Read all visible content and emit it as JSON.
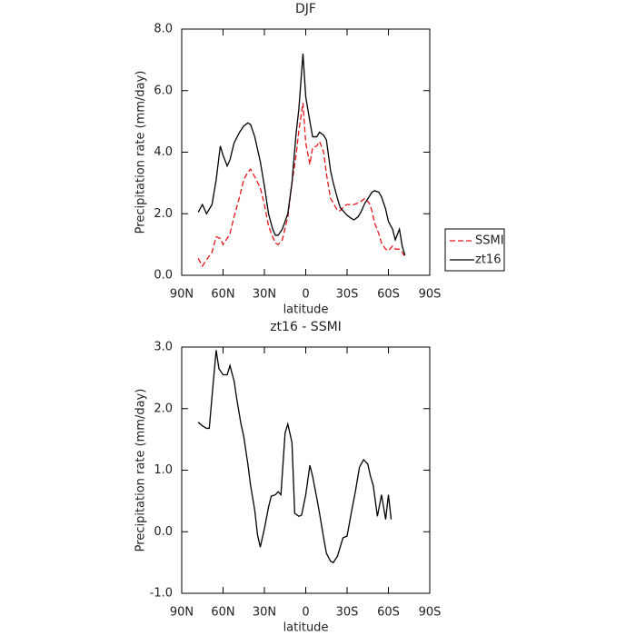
{
  "chart_data": [
    {
      "type": "line",
      "title": "DJF",
      "xlabel": "latitude",
      "ylabel": "Precipitation rate (mm/day)",
      "xlim": [
        90,
        -90
      ],
      "xticks": [
        {
          "value": 90,
          "label": "90N"
        },
        {
          "value": 60,
          "label": "60N"
        },
        {
          "value": 30,
          "label": "30N"
        },
        0,
        {
          "value": -30,
          "label": "30S"
        },
        {
          "value": -60,
          "label": "60S"
        },
        {
          "value": -90,
          "label": "90S"
        }
      ],
      "ylim": [
        0,
        8
      ],
      "yticks": [
        {
          "value": 0,
          "label": "0.0"
        },
        {
          "value": 2,
          "label": "2.0"
        },
        {
          "value": 4,
          "label": "4.0"
        },
        {
          "value": 6,
          "label": "6.0"
        },
        {
          "value": 8,
          "label": "8.0"
        }
      ],
      "legend": "right",
      "x": [
        78,
        75,
        72,
        68,
        65,
        62,
        60,
        57,
        55,
        52,
        48,
        45,
        42,
        40,
        37,
        33,
        30,
        27,
        24,
        22,
        20,
        17,
        13,
        10,
        7,
        5,
        2,
        0,
        -3,
        -5,
        -8,
        -10,
        -13,
        -15,
        -18,
        -20,
        -23,
        -25,
        -28,
        -30,
        -33,
        -35,
        -38,
        -40,
        -43,
        -46,
        -48,
        -50,
        -53,
        -55,
        -58,
        -60,
        -63,
        -65,
        -68,
        -70,
        -72
      ],
      "series": [
        {
          "name": "SSMI",
          "color": "#e8141b",
          "linestyle": "dashed",
          "values": [
            0.55,
            0.3,
            0.5,
            0.75,
            1.25,
            1.2,
            1.0,
            1.2,
            1.35,
            1.9,
            2.55,
            3.1,
            3.35,
            3.45,
            3.2,
            2.85,
            2.3,
            1.6,
            1.25,
            1.05,
            1.0,
            1.15,
            1.9,
            3.0,
            3.9,
            4.7,
            5.6,
            4.3,
            3.6,
            4.15,
            4.2,
            4.35,
            4.0,
            3.3,
            2.5,
            2.35,
            2.1,
            2.1,
            2.25,
            2.3,
            2.3,
            2.3,
            2.35,
            2.4,
            2.5,
            2.35,
            2.1,
            1.7,
            1.35,
            1.05,
            0.85,
            0.8,
            0.95,
            0.85,
            0.85,
            0.75,
            0.6
          ]
        },
        {
          "name": "zt16",
          "color": "#000000",
          "linestyle": "solid",
          "values": [
            2.05,
            2.3,
            2.0,
            2.3,
            3.1,
            4.2,
            3.9,
            3.55,
            3.75,
            4.3,
            4.65,
            4.85,
            4.95,
            4.9,
            4.5,
            3.7,
            2.9,
            2.0,
            1.5,
            1.3,
            1.3,
            1.5,
            2.0,
            3.0,
            4.6,
            5.4,
            7.2,
            5.8,
            5.0,
            4.5,
            4.5,
            4.65,
            4.55,
            4.4,
            3.4,
            3.0,
            2.5,
            2.2,
            2.05,
            1.95,
            1.85,
            1.8,
            1.9,
            2.05,
            2.35,
            2.55,
            2.7,
            2.75,
            2.7,
            2.55,
            2.15,
            1.75,
            1.5,
            1.15,
            1.5,
            0.95,
            0.65
          ]
        }
      ]
    },
    {
      "type": "line",
      "title": "zt16 - SSMI",
      "xlabel": "latitude",
      "ylabel": "Precipitation rate (mm/day)",
      "xlim": [
        90,
        -90
      ],
      "xticks": [
        {
          "value": 90,
          "label": "90N"
        },
        {
          "value": 60,
          "label": "60N"
        },
        {
          "value": 30,
          "label": "30N"
        },
        0,
        {
          "value": -30,
          "label": "30S"
        },
        {
          "value": -60,
          "label": "60S"
        },
        {
          "value": -90,
          "label": "90S"
        }
      ],
      "ylim": [
        -1,
        3
      ],
      "yticks": [
        {
          "value": -1,
          "label": "-1.0"
        },
        {
          "value": 0,
          "label": "0.0"
        },
        {
          "value": 1,
          "label": "1.0"
        },
        {
          "value": 2,
          "label": "2.0"
        },
        {
          "value": 3,
          "label": "3.0"
        }
      ],
      "color": "#000000",
      "x": [
        78,
        75,
        72,
        70,
        68,
        65,
        63,
        60,
        57,
        55,
        52,
        50,
        47,
        45,
        42,
        40,
        37,
        35,
        33,
        30,
        27,
        25,
        22,
        20,
        18,
        15,
        13,
        10,
        8,
        5,
        3,
        0,
        -3,
        -5,
        -8,
        -10,
        -13,
        -15,
        -18,
        -20,
        -23,
        -25,
        -27,
        -30,
        -33,
        -36,
        -39,
        -42,
        -45,
        -47,
        -49,
        -52,
        -55,
        -58,
        -60,
        -62
      ],
      "values": [
        1.78,
        1.72,
        1.68,
        1.68,
        2.2,
        2.95,
        2.65,
        2.55,
        2.55,
        2.7,
        2.45,
        2.15,
        1.75,
        1.55,
        1.1,
        0.75,
        0.35,
        -0.05,
        -0.25,
        0.05,
        0.4,
        0.58,
        0.6,
        0.65,
        0.6,
        1.6,
        1.75,
        1.45,
        0.3,
        0.25,
        0.27,
        0.6,
        1.08,
        0.9,
        0.55,
        0.3,
        -0.1,
        -0.35,
        -0.48,
        -0.5,
        -0.4,
        -0.25,
        -0.1,
        -0.07,
        0.3,
        0.65,
        1.05,
        1.17,
        1.1,
        0.9,
        0.75,
        0.25,
        0.6,
        0.2,
        0.6,
        0.2
      ]
    }
  ]
}
